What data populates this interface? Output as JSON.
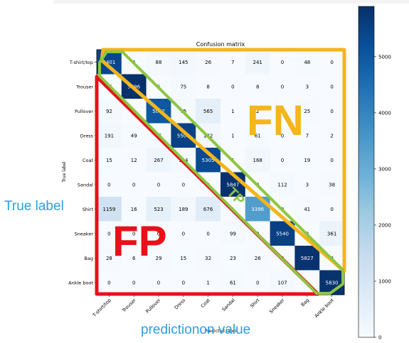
{
  "chart_data": {
    "type": "heatmap",
    "title": "Confusion matrix",
    "xlabel": "Predicted label",
    "ylabel": "True label",
    "categories": [
      "T-shirt/top",
      "Trouser",
      "Pullover",
      "Dress",
      "Coat",
      "Sandal",
      "Shirt",
      "Sneaker",
      "Bag",
      "Ankle boot"
    ],
    "matrix": [
      [
        5401,
        4,
        88,
        145,
        26,
        7,
        241,
        0,
        48,
        0
      ],
      [
        15,
        5896,
        6,
        75,
        8,
        0,
        8,
        0,
        3,
        0
      ],
      [
        92,
        6,
        5002,
        75,
        565,
        1,
        2,
        0,
        25,
        0
      ],
      [
        191,
        49,
        35,
        5504,
        182,
        1,
        61,
        0,
        7,
        2
      ],
      [
        15,
        12,
        267,
        114,
        5305,
        1,
        168,
        0,
        19,
        0
      ],
      [
        0,
        0,
        0,
        0,
        0,
        5847,
        0,
        112,
        3,
        38
      ],
      [
        1159,
        16,
        523,
        189,
        676,
        1,
        3396,
        0,
        41,
        0
      ],
      [
        0,
        0,
        0,
        0,
        0,
        99,
        0,
        5540,
        0,
        361
      ],
      [
        28,
        6,
        29,
        15,
        32,
        23,
        26,
        0,
        5827,
        0
      ],
      [
        0,
        0,
        0,
        0,
        1,
        61,
        0,
        107,
        1,
        5830
      ]
    ],
    "colorbar": {
      "ticks": [
        0,
        1000,
        2000,
        3000,
        4000,
        5000
      ],
      "max": 5896,
      "colormap": [
        "#f7fbff",
        "#deebf7",
        "#c6dbef",
        "#9ecae1",
        "#6baed6",
        "#4292c6",
        "#2171b5",
        "#08519c",
        "#08306b"
      ]
    }
  },
  "annotations": {
    "fn_label": "FN",
    "fp_label": "FP",
    "tp_label": "TP",
    "true_label_text": "True label",
    "prediction_value_text": "predictionon value",
    "fn_color": "#f5b51b",
    "fp_color": "#e8101a",
    "tp_color": "#8dc63f",
    "text_color": "#2e9ee0"
  }
}
